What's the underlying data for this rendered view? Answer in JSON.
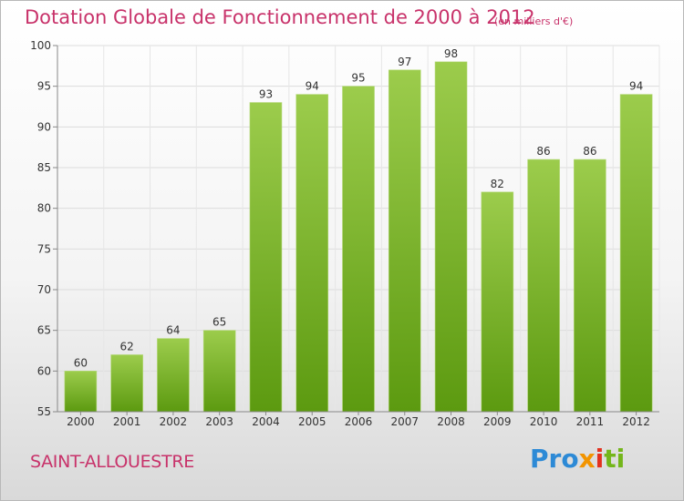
{
  "title": "Dotation Globale de Fonctionnement de 2000 à 2012",
  "unit_note": "(en milliers d'€)",
  "commune": "SAINT-ALLOUESTRE",
  "logo": {
    "p1": "Pro",
    "p2": "x",
    "p3": "i",
    "p4": "ti"
  },
  "colors": {
    "bar_top": "#9ccc4c",
    "bar_bottom": "#5c9a10",
    "title": "#c8326a"
  },
  "chart_data": {
    "type": "bar",
    "title": "Dotation Globale de Fonctionnement de 2000 à 2012",
    "subtitle": "(en milliers d'€)",
    "categories": [
      "2000",
      "2001",
      "2002",
      "2003",
      "2004",
      "2005",
      "2006",
      "2007",
      "2008",
      "2009",
      "2010",
      "2011",
      "2012"
    ],
    "values": [
      60,
      62,
      64,
      65,
      93,
      94,
      95,
      97,
      98,
      82,
      86,
      86,
      94
    ],
    "ylim": [
      55,
      100
    ],
    "yticks": [
      55,
      60,
      65,
      70,
      75,
      80,
      85,
      90,
      95,
      100
    ],
    "grid": true,
    "data_labels": true
  }
}
